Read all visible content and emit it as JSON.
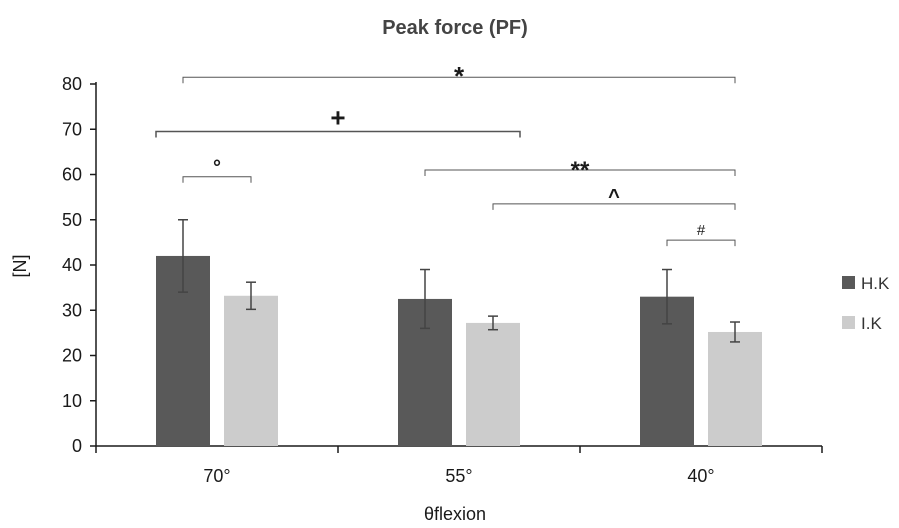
{
  "chart_data": {
    "type": "bar",
    "title": "Peak force (PF)",
    "xlabel": "θflexion",
    "ylabel": "[N]",
    "ylim": [
      0,
      80
    ],
    "yticks": [
      0,
      10,
      20,
      30,
      40,
      50,
      60,
      70,
      80
    ],
    "categories": [
      "70°",
      "55°",
      "40°"
    ],
    "grid": false,
    "legend_position": "right",
    "series": [
      {
        "name": "H.K",
        "color": "#595959",
        "values": [
          42,
          32.5,
          33
        ],
        "errors": [
          8,
          6.5,
          6
        ]
      },
      {
        "name": "I.K",
        "color": "#cccccc",
        "values": [
          33.2,
          27.2,
          25.2
        ],
        "errors": [
          3,
          1.5,
          2.2
        ]
      }
    ],
    "significance": [
      {
        "symbol": "*",
        "from": [
          0,
          0
        ],
        "to": [
          2,
          1
        ],
        "y": 81.5
      },
      {
        "symbol": "+",
        "from": [
          0,
          0
        ],
        "to": [
          1,
          1
        ],
        "y": 69.5
      },
      {
        "symbol": "°",
        "from": [
          0,
          0
        ],
        "to": [
          0,
          1
        ],
        "y": 59.5
      },
      {
        "symbol": "**",
        "from": [
          1,
          0
        ],
        "to": [
          2,
          1
        ],
        "y": 61.0
      },
      {
        "symbol": "^",
        "from": [
          1,
          1
        ],
        "to": [
          2,
          1
        ],
        "y": 53.5
      },
      {
        "symbol": "#",
        "from": [
          2,
          0
        ],
        "to": [
          2,
          1
        ],
        "y": 45.5
      }
    ]
  }
}
